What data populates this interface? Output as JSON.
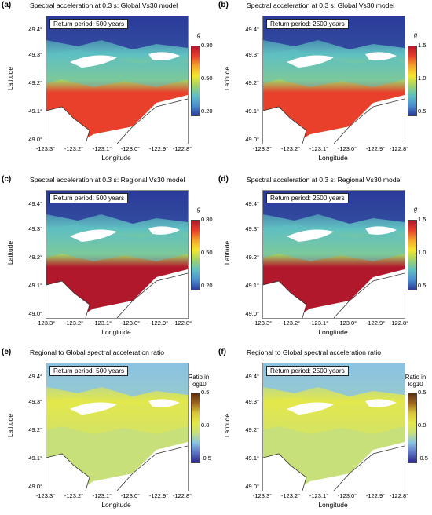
{
  "x_ticks": [
    "-123.3°",
    "-123.2°",
    "-123.1°",
    "-123.0°",
    "-122.9°",
    "-122.8°"
  ],
  "y_ticks": [
    "49.4°",
    "49.3°",
    "49.2°",
    "49.1°",
    "49.0°"
  ],
  "x_label": "Longitude",
  "y_label": "Latitude",
  "panels": [
    {
      "tag": "(a)",
      "title": "Spectral acceleration at 0.3 s: Global Vs30 model",
      "return_period": "Return period: 500 years",
      "cbar_title": "g",
      "cbar_ticks": [
        "0.80",
        "0.50",
        "0.20"
      ],
      "scheme": "global",
      "palette": "jet"
    },
    {
      "tag": "(b)",
      "title": "Spectral acceleration at 0.3 s: Global Vs30 model",
      "return_period": "Return period: 2500 years",
      "cbar_title": "g",
      "cbar_ticks": [
        "1.5",
        "1.0",
        "0.5"
      ],
      "scheme": "global",
      "palette": "jet"
    },
    {
      "tag": "(c)",
      "title": "Spectral acceleration at 0.3 s: Regional Vs30 model",
      "return_period": "Return period: 500 years",
      "cbar_title": "g",
      "cbar_ticks": [
        "0.80",
        "0.50",
        "0.20"
      ],
      "scheme": "regional",
      "palette": "jet"
    },
    {
      "tag": "(d)",
      "title": "Spectral acceleration at 0.3 s: Regional Vs30 model",
      "return_period": "Return period: 2500 years",
      "cbar_title": "g",
      "cbar_ticks": [
        "1.5",
        "1.0",
        "0.5"
      ],
      "scheme": "regional",
      "palette": "jet"
    },
    {
      "tag": "(e)",
      "title": "Regional to Global spectral acceleration ratio",
      "return_period": "Return period: 500 years",
      "cbar_title": "Ratio in log10",
      "cbar_ticks": [
        "0.5",
        "0.0",
        "-0.5"
      ],
      "scheme": "ratio",
      "palette": "diverging"
    },
    {
      "tag": "(f)",
      "title": "Regional to Global spectral acceleration ratio",
      "return_period": "Return period: 2500 years",
      "cbar_title": "Ratio in log10",
      "cbar_ticks": [
        "0.5",
        "0.0",
        "-0.5"
      ],
      "scheme": "ratio",
      "palette": "diverging"
    }
  ],
  "colors": {
    "jet": [
      "#b2182b",
      "#e8402a",
      "#f5a72a",
      "#f3e62f",
      "#9fd36a",
      "#5fc0c2",
      "#4a8fd0",
      "#2c3b9a"
    ],
    "diverging": [
      "#5a2d10",
      "#a0661e",
      "#d9c63a",
      "#e3e84a",
      "#c8e07a",
      "#89c3e3",
      "#5c74c6",
      "#2c2a8c"
    ]
  }
}
